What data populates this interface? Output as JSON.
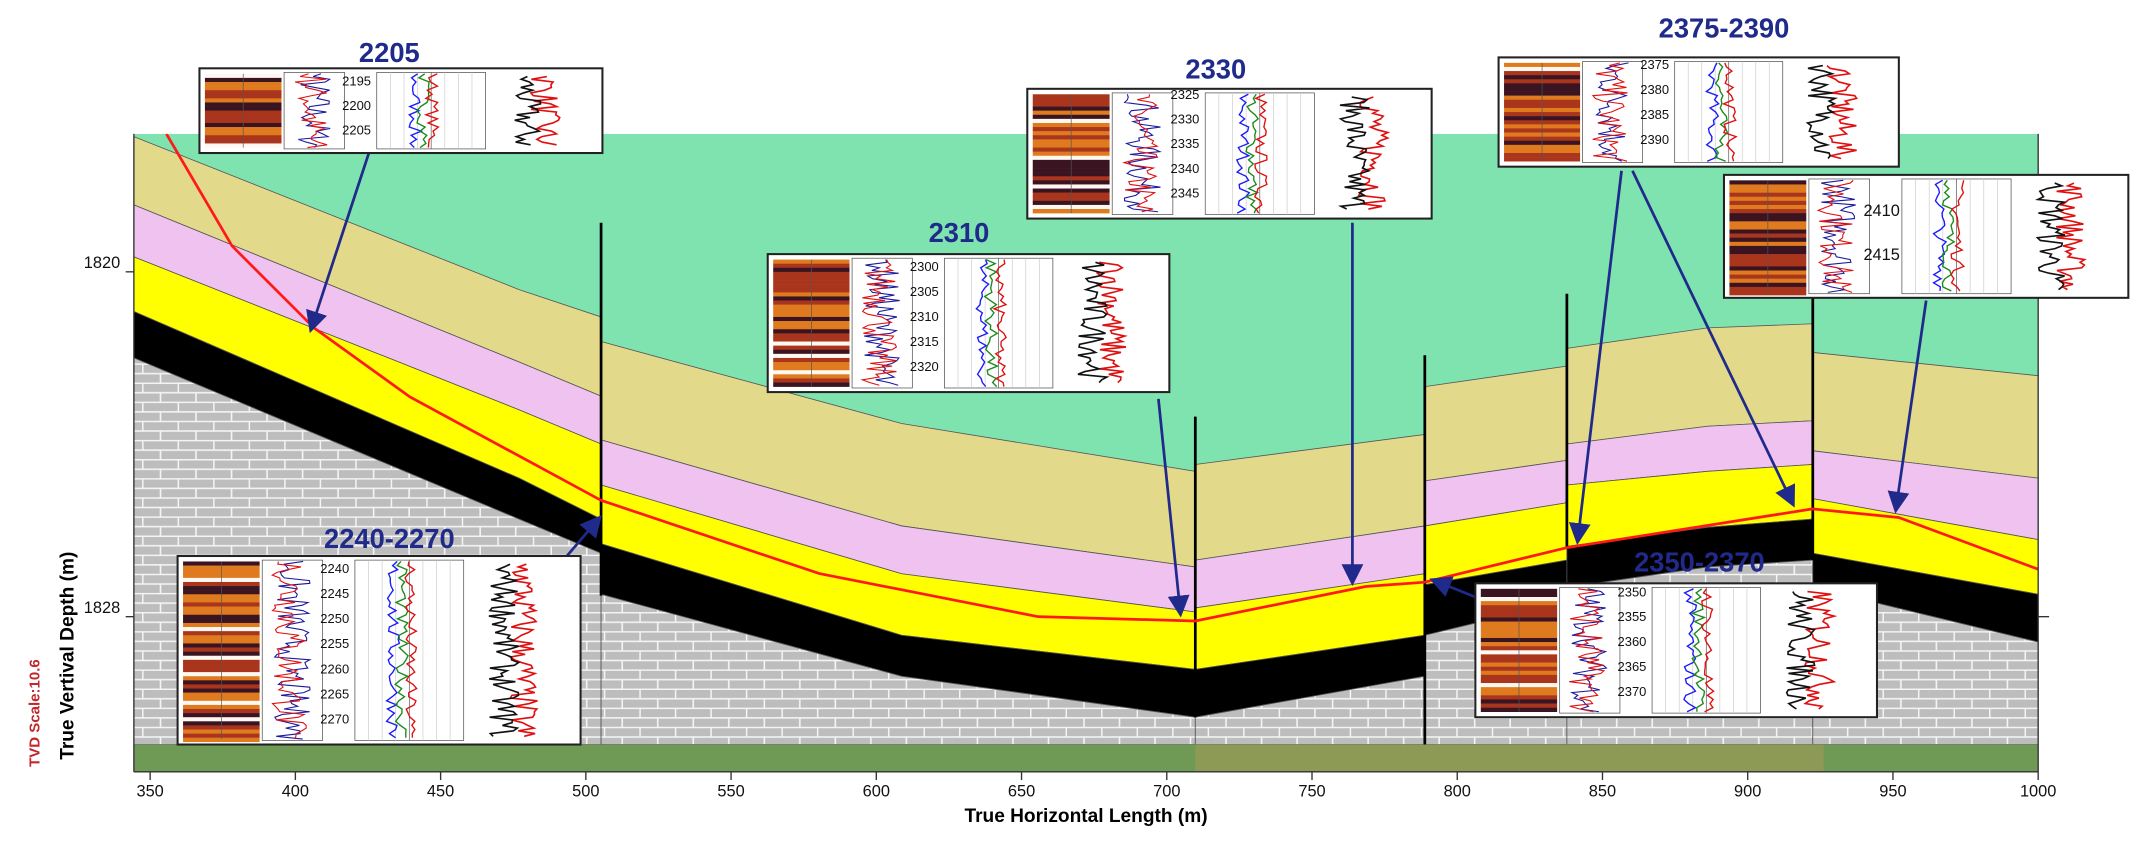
{
  "chart_data": {
    "type": "section",
    "x_label": "True Horizontal Length (m)",
    "y_label": "True Vertival Depth (m)",
    "scale_note": "TVD Scale:10.6",
    "xlim": [
      344.4,
      1000
    ],
    "xticks": [
      350,
      400,
      450,
      500,
      550,
      600,
      650,
      700,
      750,
      800,
      850,
      900,
      950,
      1000
    ],
    "ylim": [
      1816.8,
      1831.6
    ],
    "y_inverted": true,
    "yticks": [
      1820,
      1828
    ],
    "well_path": {
      "color": "#ff1a1a",
      "x": [
        355.6,
        378.2,
        406.4,
        439.4,
        505.2,
        580.4,
        655.7,
        709.8,
        768.5,
        788.8,
        837.7,
        922.3,
        952.0,
        1000.0
      ],
      "y": [
        1816.8,
        1819.4,
        1821.3,
        1822.9,
        1825.3,
        1827.0,
        1828.0,
        1828.1,
        1827.3,
        1827.2,
        1826.4,
        1825.5,
        1825.7,
        1826.9
      ]
    },
    "panels": [
      {
        "label": "2205",
        "depths": [
          2195,
          2200,
          2205
        ]
      },
      {
        "label": "2330",
        "depths": [
          2325,
          2330,
          2335,
          2340,
          2345
        ]
      },
      {
        "label": "2375-2390",
        "depths": [
          2375,
          2380,
          2385,
          2390
        ]
      },
      {
        "depths": [
          2410,
          2415
        ]
      },
      {
        "label": "2310",
        "depths": [
          2300,
          2305,
          2310,
          2315,
          2320
        ]
      },
      {
        "label": "2240-2270",
        "depths": [
          2240,
          2245,
          2250,
          2255,
          2260,
          2265,
          2270
        ]
      },
      {
        "label": "2350-2370",
        "depths": [
          2350,
          2355,
          2360,
          2365,
          2370
        ]
      }
    ]
  }
}
